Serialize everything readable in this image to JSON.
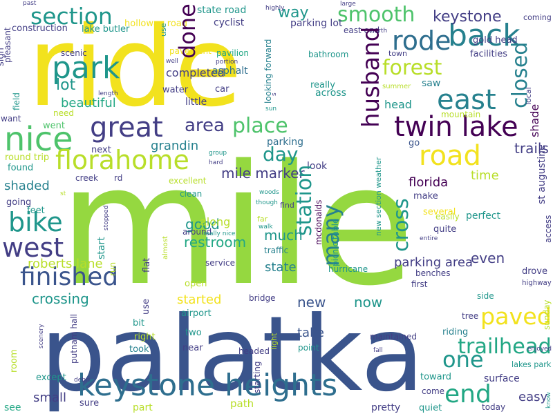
{
  "palette": {
    "yellow": "#f2e21e",
    "lime": "#95d840",
    "green": "#4ec36b",
    "teal_green": "#22a784",
    "teal": "#1f968b",
    "blue_teal": "#26818e",
    "steel": "#2e6e8e",
    "blue": "#3a548c",
    "indigo": "#433e85",
    "purple": "#482576",
    "dark": "#440154",
    "light_green": "#b8de29"
  },
  "words": [
    "mile",
    "palatka",
    "ride",
    "keystone heights",
    "nice",
    "park",
    "florahome",
    "great",
    "twin lake",
    "back",
    "east",
    "section",
    "road",
    "paved",
    "trailhead",
    "end",
    "west",
    "bike",
    "finished",
    "place",
    "forest",
    "rode",
    "smooth",
    "way",
    "keystone",
    "lot",
    "area",
    "day",
    "one",
    "trails",
    "mile marker",
    "crossing",
    "now",
    "new",
    "even",
    "good",
    "restroom",
    "parking area",
    "roberts lane",
    "time",
    "shaded",
    "state",
    "along",
    "much",
    "florida",
    "beautiful",
    "started",
    "small",
    "easy",
    "saw",
    "head",
    "grandin",
    "parking",
    "look",
    "go",
    "lakes park",
    "take",
    "completed",
    "really",
    "asphalt",
    "state road",
    "pavement",
    "parking lot",
    "path",
    "part",
    "see",
    "pretty",
    "quiet",
    "surface",
    "riding",
    "toward",
    "cyclist",
    "holloway road",
    "construction",
    "lake butler",
    "east end",
    "scenic",
    "pavilion",
    "bathroom",
    "facilities",
    "car",
    "water",
    "across",
    "little",
    "need",
    "mountain",
    "went",
    "want",
    "next",
    "round trip",
    "found",
    "going",
    "feet",
    "rd",
    "creek",
    "excellent",
    "clean",
    "traffic",
    "make",
    "several",
    "perfect",
    "quite",
    "around",
    "service",
    "hurricane",
    "benches",
    "first",
    "drove",
    "highway",
    "bridge",
    "side",
    "tree",
    "bit",
    "right",
    "two",
    "headed",
    "point",
    "maintained",
    "enjoyed",
    "took",
    "near",
    "except",
    "sure",
    "come",
    "today",
    "airport",
    "coming",
    "gold head",
    "past",
    "large",
    "north",
    "well",
    "portion",
    "length",
    "sun",
    "hard",
    "group",
    "st",
    "woods",
    "though",
    "walk",
    "far",
    "entire",
    "really nice",
    "open",
    "find",
    "debri",
    "fall",
    "highly",
    "summer",
    "town",
    "done",
    "husband",
    "cross",
    "many",
    "station",
    "closed",
    "shade",
    "st augustine",
    "mcdonalds",
    "looking forward",
    "s",
    "new section weather",
    "picnic table",
    "field",
    "sign",
    "pleasant",
    "local",
    "start",
    "run",
    "stopped",
    "flat",
    "almost",
    "use",
    "putnam hall",
    "scenery",
    "room",
    "starting",
    "light",
    "access",
    "sunday",
    "know",
    "easily"
  ]
}
